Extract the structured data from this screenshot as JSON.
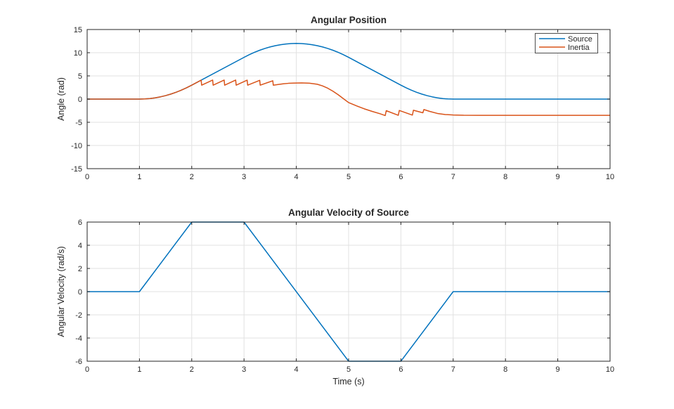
{
  "figure": {
    "background": "#ffffff",
    "axis_color": "#262626",
    "grid_color": "#e2e2e2",
    "text_color": "#262626",
    "legend_border_color": "#4d4d4d"
  },
  "chart_data": [
    {
      "type": "line",
      "title": "Angular Position",
      "xlabel": "",
      "ylabel": "Angle (rad)",
      "xlim": [
        0,
        10
      ],
      "ylim": [
        -15,
        15
      ],
      "xticks": [
        0,
        1,
        2,
        3,
        4,
        5,
        6,
        7,
        8,
        9,
        10
      ],
      "yticks": [
        -15,
        -10,
        -5,
        0,
        5,
        10,
        15
      ],
      "grid": true,
      "legend": {
        "visible": true,
        "position": "northeast",
        "labels": [
          "Source",
          "Inertia"
        ]
      },
      "series": [
        {
          "name": "Source",
          "color": "#0072BD",
          "points": [
            [
              0,
              0
            ],
            [
              1,
              0
            ],
            [
              1.1,
              0.03
            ],
            [
              1.2,
              0.12
            ],
            [
              1.3,
              0.27
            ],
            [
              1.4,
              0.48
            ],
            [
              1.5,
              0.75
            ],
            [
              1.6,
              1.08
            ],
            [
              1.7,
              1.47
            ],
            [
              1.8,
              1.92
            ],
            [
              1.9,
              2.43
            ],
            [
              2,
              3
            ],
            [
              3,
              9
            ],
            [
              3.1,
              9.57
            ],
            [
              3.2,
              10.08
            ],
            [
              3.3,
              10.53
            ],
            [
              3.4,
              10.92
            ],
            [
              3.5,
              11.25
            ],
            [
              3.6,
              11.52
            ],
            [
              3.7,
              11.73
            ],
            [
              3.8,
              11.88
            ],
            [
              3.9,
              11.97
            ],
            [
              4,
              12
            ],
            [
              4.1,
              11.97
            ],
            [
              4.2,
              11.88
            ],
            [
              4.3,
              11.73
            ],
            [
              4.4,
              11.52
            ],
            [
              4.5,
              11.25
            ],
            [
              4.6,
              10.92
            ],
            [
              4.7,
              10.53
            ],
            [
              4.8,
              10.08
            ],
            [
              4.9,
              9.57
            ],
            [
              5,
              9
            ],
            [
              6,
              3
            ],
            [
              6.1,
              2.43
            ],
            [
              6.2,
              1.92
            ],
            [
              6.3,
              1.47
            ],
            [
              6.4,
              1.08
            ],
            [
              6.5,
              0.75
            ],
            [
              6.6,
              0.48
            ],
            [
              6.7,
              0.27
            ],
            [
              6.8,
              0.12
            ],
            [
              6.9,
              0.03
            ],
            [
              7,
              0
            ],
            [
              10,
              0
            ]
          ]
        },
        {
          "name": "Inertia",
          "color": "#D95319",
          "points": [
            [
              0,
              0
            ],
            [
              1,
              0
            ],
            [
              1.1,
              0.03
            ],
            [
              1.2,
              0.12
            ],
            [
              1.3,
              0.27
            ],
            [
              1.4,
              0.48
            ],
            [
              1.5,
              0.75
            ],
            [
              1.6,
              1.08
            ],
            [
              1.7,
              1.47
            ],
            [
              1.8,
              1.92
            ],
            [
              1.9,
              2.43
            ],
            [
              2,
              3
            ],
            [
              2.18,
              4.08
            ],
            [
              2.19,
              3.0
            ],
            [
              2.4,
              4.1
            ],
            [
              2.41,
              3.0
            ],
            [
              2.62,
              4.1
            ],
            [
              2.63,
              3.0
            ],
            [
              2.84,
              4.1
            ],
            [
              2.85,
              3.0
            ],
            [
              3.06,
              4.08
            ],
            [
              3.07,
              3.0
            ],
            [
              3.3,
              4.05
            ],
            [
              3.31,
              3.0
            ],
            [
              3.55,
              3.95
            ],
            [
              3.56,
              3.0
            ],
            [
              3.65,
              3.15
            ],
            [
              3.75,
              3.3
            ],
            [
              3.85,
              3.4
            ],
            [
              3.95,
              3.45
            ],
            [
              4.1,
              3.48
            ],
            [
              4.25,
              3.42
            ],
            [
              4.4,
              3.2
            ],
            [
              4.5,
              2.85
            ],
            [
              4.6,
              2.35
            ],
            [
              4.7,
              1.7
            ],
            [
              4.8,
              0.95
            ],
            [
              4.9,
              0.1
            ],
            [
              5.0,
              -0.75
            ],
            [
              5.15,
              -1.45
            ],
            [
              5.3,
              -2.1
            ],
            [
              5.45,
              -2.65
            ],
            [
              5.6,
              -3.15
            ],
            [
              5.7,
              -3.55
            ],
            [
              5.72,
              -2.5
            ],
            [
              5.95,
              -3.5
            ],
            [
              5.97,
              -2.45
            ],
            [
              6.22,
              -3.45
            ],
            [
              6.24,
              -2.4
            ],
            [
              6.42,
              -2.95
            ],
            [
              6.44,
              -2.25
            ],
            [
              6.55,
              -2.65
            ],
            [
              6.7,
              -3.1
            ],
            [
              6.85,
              -3.33
            ],
            [
              7.0,
              -3.43
            ],
            [
              7.2,
              -3.49
            ],
            [
              7.5,
              -3.5
            ],
            [
              10,
              -3.5
            ]
          ]
        }
      ]
    },
    {
      "type": "line",
      "title": "Angular Velocity of Source",
      "xlabel": "Time (s)",
      "ylabel": "Angular Velocity (rad/s)",
      "xlim": [
        0,
        10
      ],
      "ylim": [
        -6,
        6
      ],
      "xticks": [
        0,
        1,
        2,
        3,
        4,
        5,
        6,
        7,
        8,
        9,
        10
      ],
      "yticks": [
        -6,
        -4,
        -2,
        0,
        2,
        4,
        6
      ],
      "grid": true,
      "legend": {
        "visible": false,
        "position": "",
        "labels": []
      },
      "series": [
        {
          "name": "Source",
          "color": "#0072BD",
          "points": [
            [
              0,
              0
            ],
            [
              1,
              0
            ],
            [
              2,
              6
            ],
            [
              3,
              6
            ],
            [
              5,
              -6
            ],
            [
              6,
              -6
            ],
            [
              7,
              0
            ],
            [
              10,
              0
            ]
          ]
        }
      ]
    }
  ]
}
